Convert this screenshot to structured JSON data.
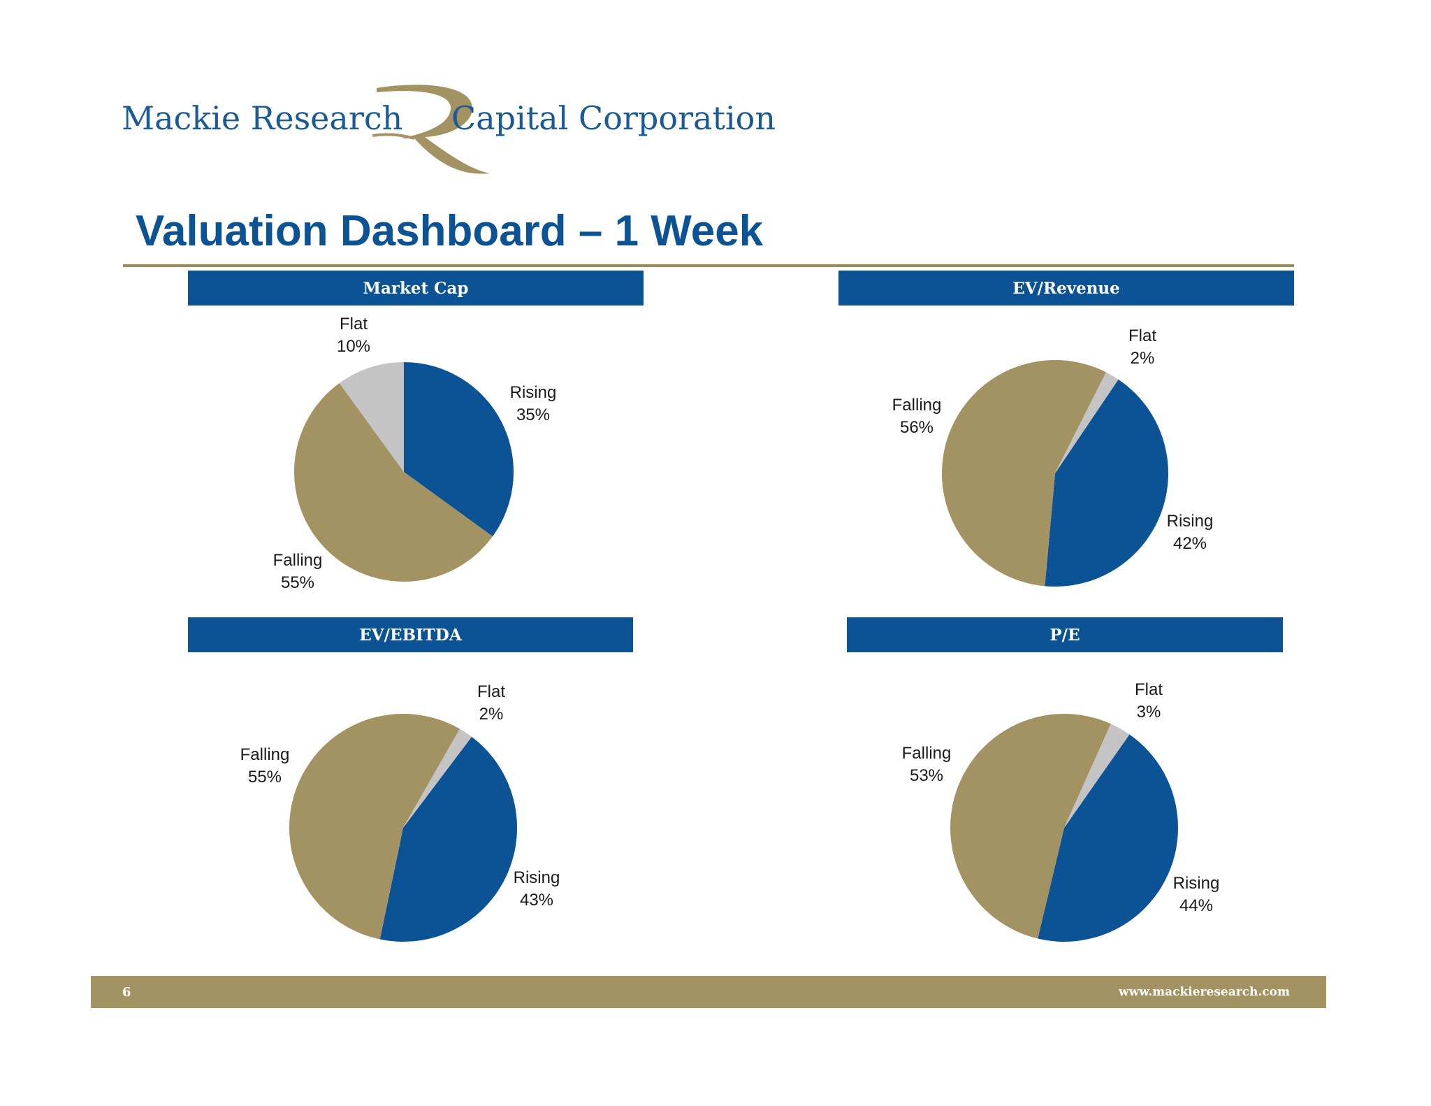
{
  "brand": {
    "name_left": "Mackie Research",
    "name_right": "Capital Corporation",
    "logo_letter": "R",
    "primary_color": "#0b5394",
    "gold_color": "#a39363"
  },
  "title": "Valuation Dashboard – 1 Week",
  "footer": {
    "page_number": "6",
    "url": "www.mackieresearch.com"
  },
  "chart_data": [
    {
      "type": "pie",
      "title": "Market Cap",
      "slices": [
        {
          "label": "Rising",
          "value": 35,
          "display": "35%",
          "color": "#0b5394"
        },
        {
          "label": "Falling",
          "value": 55,
          "display": "55%",
          "color": "#a39363"
        },
        {
          "label": "Flat",
          "value": 10,
          "display": "10%",
          "color": "#c4c4c4"
        }
      ]
    },
    {
      "type": "pie",
      "title": "EV/Revenue",
      "slices": [
        {
          "label": "Rising",
          "value": 42,
          "display": "42%",
          "color": "#0b5394"
        },
        {
          "label": "Falling",
          "value": 56,
          "display": "56%",
          "color": "#a39363"
        },
        {
          "label": "Flat",
          "value": 2,
          "display": "2%",
          "color": "#c4c4c4"
        }
      ]
    },
    {
      "type": "pie",
      "title": "EV/EBITDA",
      "slices": [
        {
          "label": "Rising",
          "value": 43,
          "display": "43%",
          "color": "#0b5394"
        },
        {
          "label": "Falling",
          "value": 55,
          "display": "55%",
          "color": "#a39363"
        },
        {
          "label": "Flat",
          "value": 2,
          "display": "2%",
          "color": "#c4c4c4"
        }
      ]
    },
    {
      "type": "pie",
      "title": "P/E",
      "slices": [
        {
          "label": "Rising",
          "value": 44,
          "display": "44%",
          "color": "#0b5394"
        },
        {
          "label": "Falling",
          "value": 53,
          "display": "53%",
          "color": "#a39363"
        },
        {
          "label": "Flat",
          "value": 3,
          "display": "3%",
          "color": "#c4c4c4"
        }
      ]
    }
  ]
}
